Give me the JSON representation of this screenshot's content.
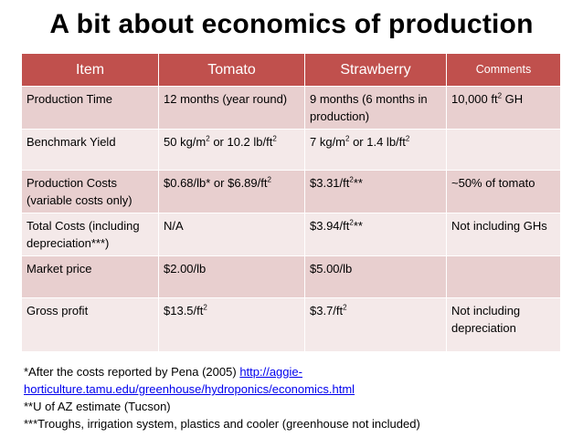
{
  "title": "A bit about economics of production",
  "table": {
    "headers": {
      "item": "Item",
      "tomato": "Tomato",
      "strawberry": "Strawberry",
      "comments": "Comments"
    },
    "rows": [
      {
        "item": "Production Time",
        "tomato": "12 months (year round)",
        "strawberry": "9 months (6 months in production)",
        "comments_pre": "10,000 ft",
        "comments_sup": "2",
        "comments_post": " GH"
      },
      {
        "item": "Benchmark Yield",
        "tomato_a": "50 kg/m",
        "tomato_sup1": "2",
        "tomato_b": " or 10.2 lb/ft",
        "tomato_sup2": "2",
        "strawberry_a": "7 kg/m",
        "strawberry_sup1": "2",
        "strawberry_b": " or 1.4 lb/ft",
        "strawberry_sup2": "2",
        "comments": ""
      },
      {
        "item": "Production Costs (variable costs only)",
        "tomato_pre": "$0.68/lb* or $6.89/ft",
        "tomato_sup": "2",
        "strawberry_pre": "$3.31/ft",
        "strawberry_sup": "2",
        "strawberry_post": "**",
        "comments": "~50% of tomato"
      },
      {
        "item": "Total Costs (including depreciation***)",
        "tomato": "N/A",
        "strawberry_pre": "$3.94/ft",
        "strawberry_sup": "2",
        "strawberry_post": "**",
        "comments": "Not including GHs"
      },
      {
        "item": "Market price",
        "tomato": "$2.00/lb",
        "strawberry": "$5.00/lb",
        "comments": ""
      },
      {
        "item": "Gross profit",
        "tomato_pre": "$13.5/ft",
        "tomato_sup": "2",
        "strawberry_pre": "$3.7/ft",
        "strawberry_sup": "2",
        "comments": "Not including depreciation"
      }
    ]
  },
  "footer": {
    "line1_text": "*After the costs reported by Pena (2005) ",
    "link_text": "http://aggie-horticulture.tamu.edu/greenhouse/hydroponics/economics.html",
    "line2": "**U of AZ estimate (Tucson)",
    "line3": "***Troughs, irrigation system, plastics and cooler (greenhouse not included)"
  },
  "colors": {
    "header_bg": "#c0504d",
    "row_odd": "#e8cfcf",
    "row_even": "#f4e9e9",
    "link": "#0000ee"
  }
}
